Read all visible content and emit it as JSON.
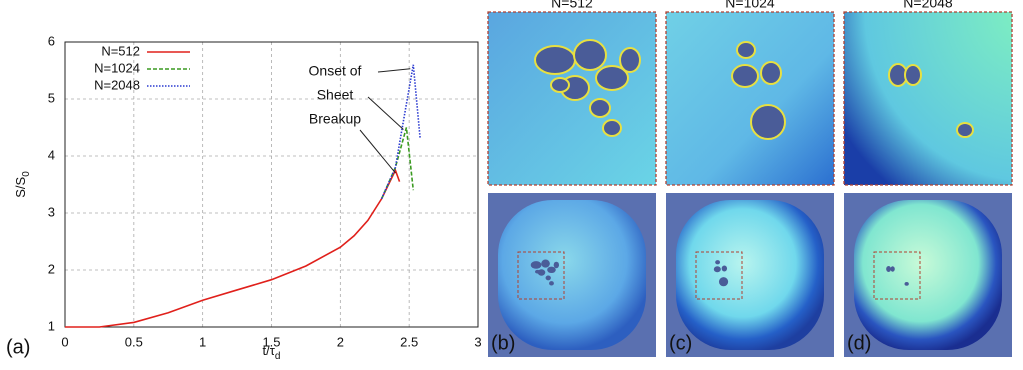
{
  "chart_data": {
    "type": "line",
    "panel_label": "(a)",
    "xlabel": "t/τ",
    "xlabel_sub": "d",
    "ylabel": "S/S",
    "ylabel_sub": "0",
    "xlim": [
      0,
      3
    ],
    "ylim": [
      1,
      6
    ],
    "xticks": [
      0,
      0.5,
      1,
      1.5,
      2,
      2.5,
      3
    ],
    "yticks": [
      1,
      2,
      3,
      4,
      5,
      6
    ],
    "grid": true,
    "annotation": [
      "Onset of",
      "Sheet",
      "Breakup"
    ],
    "series": [
      {
        "name": "N=512",
        "color": "#e0201b",
        "style": "solid",
        "x": [
          0,
          0.25,
          0.5,
          0.75,
          1,
          1.25,
          1.5,
          1.75,
          2,
          2.1,
          2.2,
          2.3,
          2.35,
          2.4,
          2.43
        ],
        "values": [
          1,
          1,
          1.08,
          1.25,
          1.47,
          1.65,
          1.83,
          2.07,
          2.4,
          2.6,
          2.87,
          3.25,
          3.5,
          3.75,
          3.55
        ]
      },
      {
        "name": "N=1024",
        "color": "#3a9a20",
        "style": "dashed",
        "x": [
          2.3,
          2.4,
          2.48,
          2.53
        ],
        "values": [
          3.25,
          3.8,
          4.5,
          3.4
        ]
      },
      {
        "name": "N=2048",
        "color": "#2a3ad0",
        "style": "dotted",
        "x": [
          2.3,
          2.4,
          2.45,
          2.53,
          2.58
        ],
        "values": [
          3.25,
          3.8,
          4.5,
          5.6,
          4.3
        ]
      }
    ]
  },
  "panels": [
    {
      "title": "N=512",
      "label": "(b)"
    },
    {
      "title": "N=1024",
      "label": "(c)"
    },
    {
      "title": "N=2048",
      "label": "(d)"
    }
  ]
}
